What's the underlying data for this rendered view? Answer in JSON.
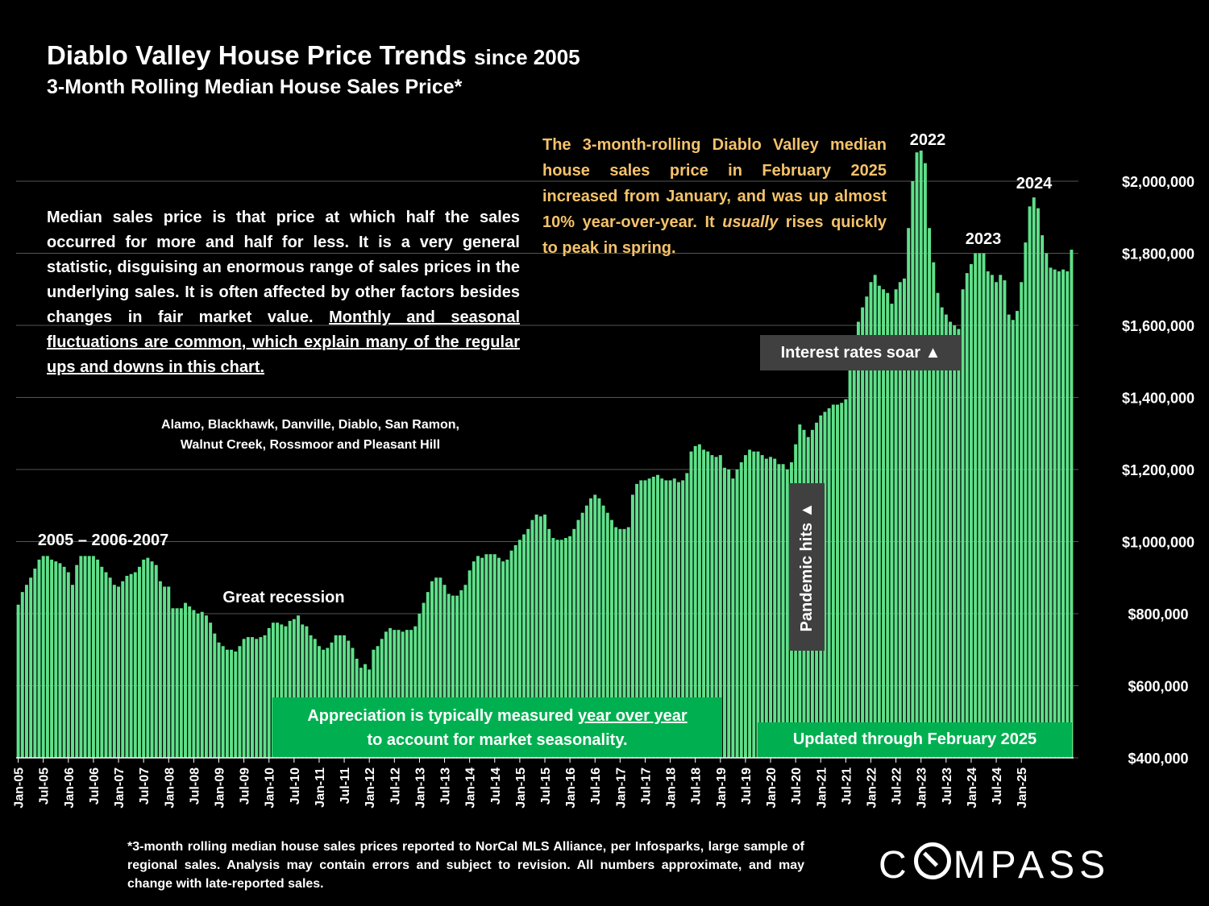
{
  "header": {
    "title": "Diablo Valley House Price Trends",
    "title_suffix": "since 2005",
    "subtitle": "3-Month Rolling Median House Sales Price*"
  },
  "notes": {
    "median_part1": "Median sales price is that price at which half the sales occurred for more and half for less. It is a very general statistic, disguising an enormous range of sales prices in the underlying sales. It is often affected by other factors besides changes in fair market value.",
    "median_part2": "Monthly and seasonal fluctuations are common, which explain many of the regular ups and downs in this chart.",
    "areas_line1": "Alamo, Blackhawk, Danville, Diablo, San Ramon,",
    "areas_line2": "Walnut Creek, Rossmoor and Pleasant Hill",
    "callout_part1": "The 3-month-rolling Diablo Valley median house sales price in February 2025 increased from January, and was up almost 10% year-over-year. It",
    "callout_em": "usually",
    "callout_part2": "rises quickly to peak in spring.",
    "appreciation_part1": "Appreciation is typically measured",
    "appreciation_link": "year over year",
    "appreciation_part2": "to account for market seasonality.",
    "updated": "Updated through February 2025",
    "interest": "Interest rates soar",
    "pandemic": "Pandemic hits",
    "footnote": "*3-month rolling median house sales prices reported to NorCal MLS Alliance, per Infosparks, large sample of regional sales. Analysis may contain errors and subject to revision. All numbers approximate, and may change with late-reported sales.",
    "logo": "COMPASS"
  },
  "colors": {
    "bar": "#5fe08a",
    "callout": "#f4c26a",
    "green_box": "#00b050",
    "grey_box": "#404040"
  },
  "chart_data": {
    "type": "bar",
    "ylim": [
      400000,
      2000000
    ],
    "y_ticks": [
      "$400,000",
      "$600,000",
      "$800,000",
      "$1,000,000",
      "$1,200,000",
      "$1,400,000",
      "$1,600,000",
      "$1,800,000",
      "$2,000,000"
    ],
    "y_tick_values": [
      400000,
      600000,
      800000,
      1000000,
      1200000,
      1400000,
      1600000,
      1800000,
      2000000
    ],
    "x_ticks": [
      "Jan-05",
      "Jul-05",
      "Jan-06",
      "Jul-06",
      "Jan-07",
      "Jul-07",
      "Jan-08",
      "Jul-08",
      "Jan-09",
      "Jul-09",
      "Jan-10",
      "Jul-10",
      "Jan-11",
      "Jul-11",
      "Jan-12",
      "Jul-12",
      "Jan-13",
      "Jul-13",
      "Jan-14",
      "Jul-14",
      "Jan-15",
      "Jul-15",
      "Jan-16",
      "Jul-16",
      "Jan-17",
      "Jul-17",
      "Jan-18",
      "Jul-18",
      "Jan-19",
      "Jul-19",
      "Jan-20",
      "Jul-20",
      "Jan-21",
      "Jul-21",
      "Jan-22",
      "Jul-22",
      "Jan-23",
      "Jul-23",
      "Jan-24",
      "Jul-24",
      "Jan-25"
    ],
    "start": "Jan-05",
    "end": "Feb-25",
    "values": [
      825000,
      860000,
      880000,
      900000,
      925000,
      950000,
      960000,
      960000,
      950000,
      945000,
      940000,
      930000,
      915000,
      880000,
      935000,
      960000,
      960000,
      960000,
      960000,
      950000,
      930000,
      915000,
      900000,
      880000,
      875000,
      890000,
      905000,
      910000,
      915000,
      930000,
      950000,
      955000,
      945000,
      935000,
      890000,
      875000,
      875000,
      815000,
      815000,
      815000,
      830000,
      820000,
      810000,
      800000,
      805000,
      795000,
      775000,
      745000,
      720000,
      710000,
      700000,
      700000,
      695000,
      710000,
      730000,
      735000,
      735000,
      730000,
      735000,
      740000,
      760000,
      775000,
      775000,
      770000,
      765000,
      780000,
      785000,
      795000,
      770000,
      765000,
      740000,
      730000,
      710000,
      700000,
      705000,
      720000,
      740000,
      740000,
      740000,
      725000,
      705000,
      675000,
      650000,
      660000,
      645000,
      700000,
      710000,
      730000,
      750000,
      760000,
      755000,
      755000,
      750000,
      755000,
      755000,
      765000,
      800000,
      830000,
      860000,
      890000,
      900000,
      900000,
      880000,
      855000,
      850000,
      850000,
      865000,
      880000,
      920000,
      945000,
      960000,
      955000,
      965000,
      965000,
      965000,
      955000,
      945000,
      950000,
      975000,
      990000,
      1005000,
      1020000,
      1035000,
      1060000,
      1075000,
      1070000,
      1075000,
      1035000,
      1010000,
      1005000,
      1005000,
      1010000,
      1015000,
      1035000,
      1060000,
      1080000,
      1100000,
      1120000,
      1130000,
      1120000,
      1100000,
      1080000,
      1060000,
      1040000,
      1035000,
      1035000,
      1040000,
      1130000,
      1160000,
      1170000,
      1170000,
      1175000,
      1180000,
      1185000,
      1175000,
      1170000,
      1170000,
      1175000,
      1165000,
      1170000,
      1190000,
      1250000,
      1265000,
      1270000,
      1255000,
      1250000,
      1240000,
      1235000,
      1240000,
      1205000,
      1200000,
      1175000,
      1200000,
      1220000,
      1240000,
      1255000,
      1250000,
      1250000,
      1240000,
      1230000,
      1235000,
      1230000,
      1215000,
      1215000,
      1200000,
      1220000,
      1270000,
      1325000,
      1310000,
      1290000,
      1310000,
      1330000,
      1350000,
      1360000,
      1370000,
      1380000,
      1380000,
      1385000,
      1395000,
      1480000,
      1560000,
      1610000,
      1650000,
      1680000,
      1720000,
      1740000,
      1710000,
      1700000,
      1690000,
      1660000,
      1700000,
      1720000,
      1730000,
      1870000,
      2000000,
      2080000,
      2085000,
      2050000,
      1870000,
      1775000,
      1690000,
      1650000,
      1630000,
      1610000,
      1600000,
      1590000,
      1700000,
      1745000,
      1770000,
      1800000,
      1800000,
      1800000,
      1750000,
      1740000,
      1720000,
      1740000,
      1725000,
      1630000,
      1615000,
      1640000,
      1720000,
      1830000,
      1930000,
      1955000,
      1925000,
      1850000,
      1800000,
      1760000,
      1755000,
      1750000,
      1755000,
      1750000,
      1810000
    ],
    "annotations": [
      "2005 – 2006-2007",
      "Great recession",
      "2022",
      "2023",
      "2024"
    ]
  }
}
